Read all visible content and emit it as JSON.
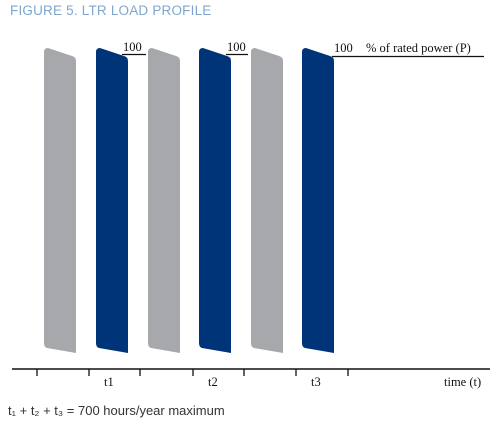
{
  "figure": {
    "title": "FIGURE 5.  LTR LOAD PROFILE"
  },
  "load_profile": {
    "level_label": "100",
    "power_label": "% of rated power (P)",
    "time_label": "time (t)",
    "intervals": [
      "t1",
      "t2",
      "t3"
    ],
    "colors": {
      "off": "#a6a8ab",
      "on": "#003478",
      "title": "#7fa6cf"
    }
  },
  "formula": {
    "text": "t₁ + t₂ + t₃ = 700 hours/year maximum"
  }
}
